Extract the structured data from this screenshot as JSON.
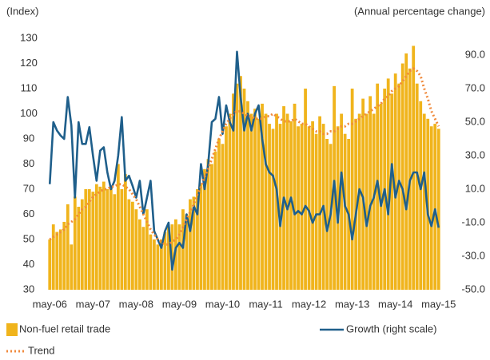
{
  "chart_data": {
    "type": "bar",
    "y_label": "(Index)",
    "y2_label": "(Annual percentage change)",
    "categories": [
      "may-06",
      null,
      null,
      null,
      null,
      null,
      null,
      null,
      null,
      null,
      null,
      null,
      "may-07",
      null,
      null,
      null,
      null,
      null,
      null,
      null,
      null,
      null,
      null,
      null,
      "may-08",
      null,
      null,
      null,
      null,
      null,
      null,
      null,
      null,
      null,
      null,
      null,
      "may-09",
      null,
      null,
      null,
      null,
      null,
      null,
      null,
      null,
      null,
      null,
      null,
      "may-10",
      null,
      null,
      null,
      null,
      null,
      null,
      null,
      null,
      null,
      null,
      null,
      "may-11",
      null,
      null,
      null,
      null,
      null,
      null,
      null,
      null,
      null,
      null,
      null,
      "may-12",
      null,
      null,
      null,
      null,
      null,
      null,
      null,
      null,
      null,
      null,
      null,
      "may-13",
      null,
      null,
      null,
      null,
      null,
      null,
      null,
      null,
      null,
      null,
      null,
      "may-14",
      null,
      null,
      null,
      null,
      null,
      null,
      null,
      null,
      null,
      null,
      null,
      "may-15"
    ],
    "series": [
      {
        "name": "Non-fuel retail trade",
        "type": "bar",
        "color": "#f0b41c",
        "values": [
          50,
          56,
          53,
          54,
          57,
          64,
          48,
          67,
          63,
          66,
          70,
          70,
          69,
          72,
          71,
          73,
          70,
          71,
          68,
          80,
          70,
          76,
          66,
          65,
          62,
          58,
          55,
          62,
          52,
          50,
          48,
          50,
          53,
          55,
          56,
          58,
          56,
          62,
          60,
          66,
          67,
          70,
          72,
          78,
          82,
          80,
          85,
          90,
          88,
          95,
          100,
          108,
          112,
          115,
          110,
          105,
          100,
          102,
          98,
          104,
          100,
          96,
          94,
          100,
          96,
          103,
          100,
          97,
          104,
          95,
          96,
          110,
          95,
          97,
          92,
          99,
          96,
          90,
          88,
          111,
          95,
          100,
          92,
          90,
          110,
          98,
          100,
          106,
          100,
          107,
          100,
          112,
          104,
          110,
          114,
          108,
          116,
          112,
          120,
          124,
          118,
          127,
          112,
          105,
          100,
          98,
          95,
          96,
          94
        ]
      },
      {
        "name": "Growth (right scale)",
        "type": "line",
        "axis": "y2",
        "color": "#1f5f8b",
        "values": [
          13,
          50,
          45,
          42,
          40,
          65,
          48,
          5,
          50,
          37,
          37,
          47,
          30,
          15,
          33,
          35,
          20,
          10,
          15,
          30,
          53,
          15,
          18,
          12,
          5,
          15,
          -5,
          5,
          15,
          -15,
          -20,
          -25,
          -15,
          -10,
          -38,
          -25,
          -22,
          -25,
          -5,
          -15,
          0,
          -5,
          25,
          10,
          25,
          50,
          52,
          65,
          43,
          60,
          50,
          45,
          92,
          65,
          45,
          55,
          45,
          55,
          60,
          40,
          25,
          20,
          18,
          10,
          -12,
          5,
          -2,
          5,
          -5,
          -3,
          -5,
          0,
          -3,
          -10,
          -5,
          -5,
          0,
          -15,
          -5,
          15,
          -10,
          20,
          0,
          -5,
          -20,
          -5,
          10,
          5,
          -12,
          0,
          5,
          15,
          0,
          10,
          -5,
          25,
          5,
          15,
          10,
          -2,
          15,
          20,
          20,
          10,
          20,
          -5,
          -12,
          -2,
          -13
        ]
      },
      {
        "name": "Trend",
        "type": "line",
        "style": "dotted",
        "color": "#f08a3c",
        "values": [
          50,
          51,
          52,
          53,
          54,
          56,
          57,
          58,
          60,
          62,
          63,
          65,
          67,
          68,
          69,
          70,
          70,
          71,
          71,
          72,
          72,
          71,
          70,
          68,
          66,
          63,
          60,
          57,
          54,
          52,
          50,
          49,
          48,
          48,
          49,
          50,
          52,
          55,
          58,
          61,
          64,
          68,
          71,
          75,
          78,
          82,
          86,
          90,
          93,
          96,
          98,
          100,
          101,
          101,
          100,
          99,
          99,
          98,
          98,
          98,
          99,
          99,
          100,
          99,
          98,
          97,
          97,
          97,
          98,
          97,
          96,
          96,
          95,
          94,
          93,
          93,
          92,
          92,
          93,
          93,
          94,
          95,
          95,
          96,
          96,
          97,
          98,
          99,
          100,
          101,
          102,
          103,
          104,
          106,
          107,
          109,
          110,
          111,
          113,
          115,
          117,
          118,
          117,
          115,
          110,
          106,
          101,
          98,
          95
        ]
      }
    ],
    "ylim": [
      30,
      130
    ],
    "yticks": [
      30,
      40,
      50,
      60,
      70,
      80,
      90,
      100,
      110,
      120,
      130
    ],
    "y2lim": [
      -50,
      100
    ],
    "y2ticks": [
      {
        "value": -50,
        "label": "-50.0"
      },
      {
        "value": -30,
        "label": "-30.0"
      },
      {
        "value": -10,
        "label": "-10.0"
      },
      {
        "value": 10,
        "label": "10.0"
      },
      {
        "value": 30,
        "label": "30.0"
      },
      {
        "value": 50,
        "label": "50.0"
      },
      {
        "value": 70,
        "label": "70.0"
      },
      {
        "value": 90,
        "label": "90.0"
      }
    ],
    "grid": false
  }
}
